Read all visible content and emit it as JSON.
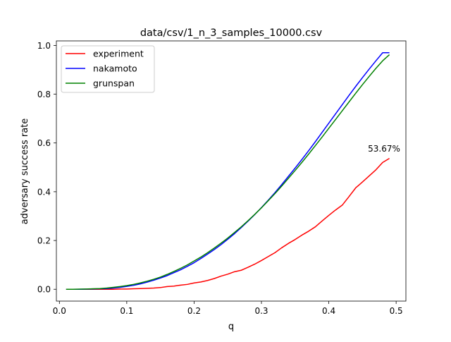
{
  "chart_data": {
    "type": "line",
    "title": "data/csv/1_n_3_samples_10000.csv",
    "xlabel": "q",
    "ylabel": "adversary success rate",
    "xlim": [
      -0.0045,
      0.5145
    ],
    "ylim": [
      -0.0485,
      1.0185
    ],
    "x_ticks": [
      "0.0",
      "0.1",
      "0.2",
      "0.3",
      "0.4",
      "0.5"
    ],
    "x_tick_values": [
      0.0,
      0.1,
      0.2,
      0.3,
      0.4,
      0.5
    ],
    "y_ticks": [
      "0.0",
      "0.2",
      "0.4",
      "0.6",
      "0.8",
      "1.0"
    ],
    "y_tick_values": [
      0.0,
      0.2,
      0.4,
      0.6,
      0.8,
      1.0
    ],
    "grid": false,
    "legend_position": "upper-left",
    "annotation": {
      "text": "53.67%",
      "x": 0.49,
      "y": 0.5367
    },
    "series": [
      {
        "name": "experiment",
        "color": "#ff0000",
        "x": [
          0.01,
          0.02,
          0.03,
          0.04,
          0.05,
          0.06,
          0.07,
          0.08,
          0.09,
          0.1,
          0.11,
          0.12,
          0.13,
          0.14,
          0.15,
          0.16,
          0.17,
          0.18,
          0.19,
          0.2,
          0.21,
          0.22,
          0.23,
          0.24,
          0.25,
          0.26,
          0.27,
          0.28,
          0.29,
          0.3,
          0.31,
          0.32,
          0.33,
          0.34,
          0.35,
          0.36,
          0.37,
          0.38,
          0.39,
          0.4,
          0.41,
          0.42,
          0.43,
          0.44,
          0.45,
          0.46,
          0.47,
          0.48,
          0.49
        ],
        "y": [
          0.0,
          0.0,
          0.0,
          0.0,
          0.0,
          0.0,
          0.0,
          0.0,
          0.001,
          0.001,
          0.002,
          0.003,
          0.004,
          0.005,
          0.007,
          0.011,
          0.013,
          0.017,
          0.02,
          0.026,
          0.03,
          0.036,
          0.044,
          0.054,
          0.062,
          0.072,
          0.078,
          0.09,
          0.103,
          0.118,
          0.134,
          0.15,
          0.17,
          0.188,
          0.204,
          0.222,
          0.238,
          0.256,
          0.28,
          0.303,
          0.325,
          0.345,
          0.38,
          0.416,
          0.44,
          0.465,
          0.49,
          0.52,
          0.5367
        ]
      },
      {
        "name": "nakamoto",
        "color": "#0000ff",
        "x": [
          0.01,
          0.02,
          0.03,
          0.04,
          0.05,
          0.06,
          0.07,
          0.08,
          0.09,
          0.1,
          0.11,
          0.12,
          0.13,
          0.14,
          0.15,
          0.16,
          0.17,
          0.18,
          0.19,
          0.2,
          0.21,
          0.22,
          0.23,
          0.24,
          0.25,
          0.26,
          0.27,
          0.28,
          0.29,
          0.3,
          0.31,
          0.32,
          0.33,
          0.34,
          0.35,
          0.36,
          0.37,
          0.38,
          0.39,
          0.4,
          0.41,
          0.42,
          0.43,
          0.44,
          0.45,
          0.46,
          0.47,
          0.48,
          0.49
        ],
        "y": [
          0.0,
          0.0,
          0.0,
          0.0005,
          0.001,
          0.002,
          0.003,
          0.005,
          0.008,
          0.012,
          0.016,
          0.022,
          0.029,
          0.037,
          0.046,
          0.056,
          0.068,
          0.08,
          0.094,
          0.109,
          0.126,
          0.144,
          0.163,
          0.183,
          0.205,
          0.228,
          0.253,
          0.279,
          0.306,
          0.335,
          0.365,
          0.396,
          0.429,
          0.463,
          0.497,
          0.532,
          0.568,
          0.605,
          0.643,
          0.681,
          0.719,
          0.757,
          0.795,
          0.832,
          0.868,
          0.903,
          0.937,
          0.97,
          0.97
        ]
      },
      {
        "name": "grunspan",
        "color": "#008000",
        "x": [
          0.01,
          0.02,
          0.03,
          0.04,
          0.05,
          0.06,
          0.07,
          0.08,
          0.09,
          0.1,
          0.11,
          0.12,
          0.13,
          0.14,
          0.15,
          0.16,
          0.17,
          0.18,
          0.19,
          0.2,
          0.21,
          0.22,
          0.23,
          0.24,
          0.25,
          0.26,
          0.27,
          0.28,
          0.29,
          0.3,
          0.31,
          0.32,
          0.33,
          0.34,
          0.35,
          0.36,
          0.37,
          0.38,
          0.39,
          0.4,
          0.41,
          0.42,
          0.43,
          0.44,
          0.45,
          0.46,
          0.47,
          0.48,
          0.49
        ],
        "y": [
          0.0,
          0.0,
          0.0005,
          0.001,
          0.002,
          0.003,
          0.005,
          0.008,
          0.011,
          0.015,
          0.02,
          0.026,
          0.033,
          0.041,
          0.05,
          0.061,
          0.073,
          0.086,
          0.1,
          0.116,
          0.132,
          0.15,
          0.169,
          0.189,
          0.21,
          0.233,
          0.256,
          0.281,
          0.307,
          0.334,
          0.363,
          0.392,
          0.423,
          0.455,
          0.487,
          0.52,
          0.554,
          0.589,
          0.624,
          0.66,
          0.696,
          0.732,
          0.768,
          0.804,
          0.839,
          0.873,
          0.906,
          0.937,
          0.962
        ]
      }
    ]
  }
}
